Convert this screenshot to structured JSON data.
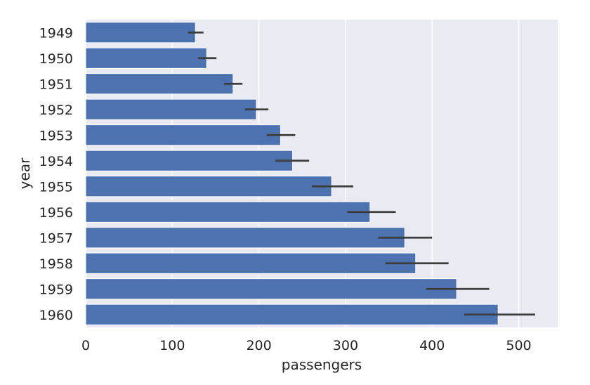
{
  "chart_data": {
    "type": "bar",
    "orientation": "horizontal",
    "categories": [
      "1949",
      "1950",
      "1951",
      "1952",
      "1953",
      "1954",
      "1955",
      "1956",
      "1957",
      "1958",
      "1959",
      "1960"
    ],
    "values": [
      126.7,
      139.7,
      170.2,
      197.0,
      225.0,
      238.9,
      284.0,
      328.3,
      368.4,
      381.0,
      428.3,
      476.2
    ],
    "error_bars": [
      [
        118,
        136
      ],
      [
        130,
        151
      ],
      [
        160,
        181
      ],
      [
        184,
        211
      ],
      [
        209,
        242
      ],
      [
        219,
        258
      ],
      [
        261,
        309
      ],
      [
        302,
        358
      ],
      [
        338,
        400
      ],
      [
        346,
        419
      ],
      [
        393,
        466
      ],
      [
        437,
        519
      ]
    ],
    "xlabel": "passengers",
    "ylabel": "year",
    "xlim": [
      0,
      545
    ],
    "xticks": [
      "0",
      "100",
      "200",
      "300",
      "400",
      "500"
    ],
    "grid": true,
    "colors": {
      "bar": "#4c72b0",
      "error_bar": "#3d3d3d",
      "plot_background": "#eaeaf2",
      "grid": "#ffffff"
    }
  }
}
